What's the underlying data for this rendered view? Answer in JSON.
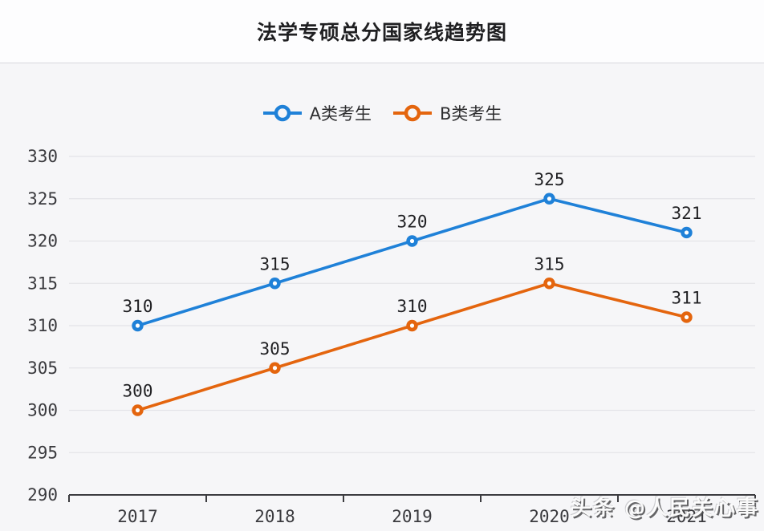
{
  "title": "法学专硕总分国家线趋势图",
  "watermark": "头条 @人民关心事",
  "chart_data": {
    "type": "line",
    "title": "法学专硕总分国家线趋势图",
    "categories": [
      "2017",
      "2018",
      "2019",
      "2020",
      "2021"
    ],
    "series": [
      {
        "name": "A类考生",
        "color": "#1f81d8",
        "values": [
          310,
          315,
          320,
          325,
          321
        ]
      },
      {
        "name": "B类考生",
        "color": "#e4650e",
        "values": [
          300,
          305,
          310,
          315,
          311
        ]
      }
    ],
    "xlabel": "",
    "ylabel": "",
    "ylim": [
      290,
      330
    ],
    "ytick_step": 5,
    "grid": true,
    "legend_position": "top",
    "data_labels": true
  }
}
